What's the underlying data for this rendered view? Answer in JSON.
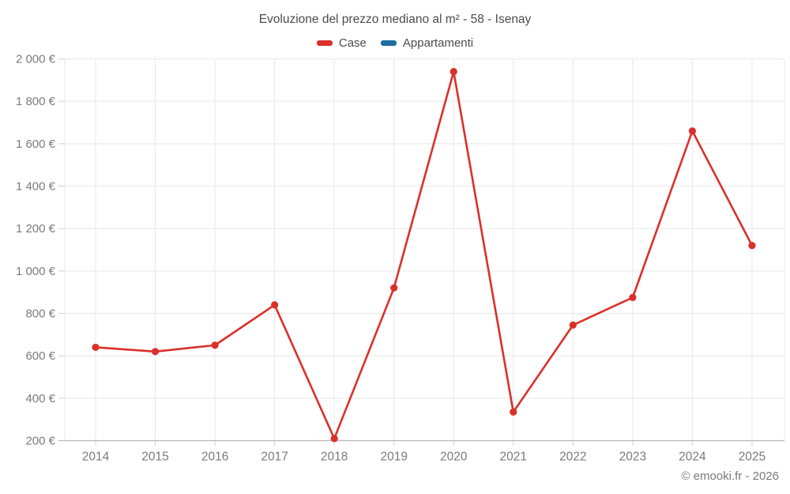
{
  "page": {
    "title": "Evoluzione del prezzo mediano al m² - 58 - Isenay"
  },
  "legend": {
    "items": [
      {
        "label": "Case",
        "color": "#db302a"
      },
      {
        "label": "Appartamenti",
        "color": "#1a6f9e"
      }
    ]
  },
  "footer": {
    "credit": "© emooki.fr - 2026"
  },
  "chart_data": {
    "type": "line",
    "title": "Evoluzione del prezzo mediano al m² - 58 - Isenay",
    "categories": [
      "2014",
      "2015",
      "2016",
      "2017",
      "2018",
      "2019",
      "2020",
      "2021",
      "2022",
      "2023",
      "2024",
      "2025"
    ],
    "series": [
      {
        "name": "Case",
        "color": "#db302a",
        "values": [
          640,
          620,
          650,
          840,
          210,
          920,
          1940,
          335,
          745,
          875,
          1660,
          1120
        ]
      },
      {
        "name": "Appartamenti",
        "color": "#1a6f9e",
        "values": []
      }
    ],
    "xlabel": "",
    "ylabel": "",
    "ylim": [
      200,
      2000
    ],
    "ytick_step": 200,
    "ytick_labels": [
      "200 €",
      "400 €",
      "600 €",
      "800 €",
      "1 000 €",
      "1 200 €",
      "1 400 €",
      "1 600 €",
      "1 800 €",
      "2 000 €"
    ],
    "grid": true,
    "legend_position": "top",
    "colors": {
      "grid_line": "#e8e8e8",
      "axis_line": "#b8b8b8",
      "tick_mark": "#d0d0d0",
      "axis_text": "#7b7b7b",
      "title_text": "#4c4c4c"
    }
  }
}
